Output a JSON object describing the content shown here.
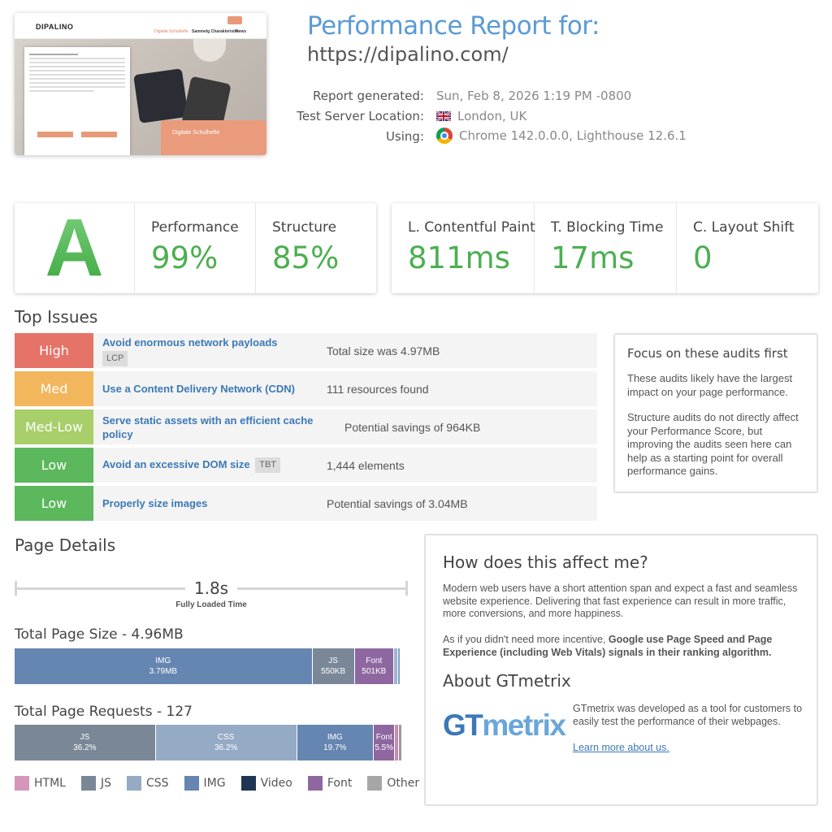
{
  "header": {
    "title": "Performance Report for:",
    "url": "https://dipalino.com/",
    "report_generated_label": "Report generated:",
    "report_generated_value": "Sun, Feb 8, 2026 1:19 PM -0800",
    "server_label": "Test Server Location:",
    "server_value": "London, UK",
    "using_label": "Using:",
    "using_value": "Chrome 142.0.0.0, Lighthouse 12.6.1"
  },
  "thumbnail": {
    "logo": "DIPALINO",
    "nav": [
      "Digitale Schulhefte",
      "Sammelg Charakteristik",
      "News"
    ],
    "card_title": "Digitale Schulhefte"
  },
  "grades": {
    "grade": "A",
    "performance_label": "Performance",
    "performance_value": "99%",
    "structure_label": "Structure",
    "structure_value": "85%"
  },
  "vitals": {
    "lcp_label": "L. Contentful Paint",
    "lcp_value": "811ms",
    "tbt_label": "T. Blocking Time",
    "tbt_value": "17ms",
    "cls_label": "C. Layout Shift",
    "cls_value": "0"
  },
  "top_issues": {
    "title": "Top Issues",
    "items": [
      {
        "severity": "High",
        "color": "#e57368",
        "name": "Avoid enormous network payloads",
        "tag": "LCP",
        "detail": "Total size was 4.97MB"
      },
      {
        "severity": "Med",
        "color": "#f2b65d",
        "name": "Use a Content Delivery Network (CDN)",
        "tag": "",
        "detail": "111 resources found"
      },
      {
        "severity": "Med-Low",
        "color": "#a8cf6a",
        "name": "Serve static assets with an efficient cache policy",
        "tag": "",
        "detail": "Potential savings of 964KB"
      },
      {
        "severity": "Low",
        "color": "#5cb85c",
        "name": "Avoid an excessive DOM size",
        "tag": "TBT",
        "detail": "1,444 elements"
      },
      {
        "severity": "Low",
        "color": "#5cb85c",
        "name": "Properly size images",
        "tag": "",
        "detail": "Potential savings of 3.04MB"
      }
    ]
  },
  "focus": {
    "title": "Focus on these audits first",
    "p1": "These audits likely have the largest impact on your page performance.",
    "p2": "Structure audits do not directly affect your Performance Score, but improving the audits seen here can help as a starting point for overall performance gains."
  },
  "page_details": {
    "title": "Page Details",
    "fully_loaded_value": "1.8s",
    "fully_loaded_label": "Fully Loaded Time",
    "size_title": "Total Page Size - 4.96MB",
    "size_segments": [
      {
        "name": "IMG",
        "value": "3.79MB",
        "fraction": 0.764,
        "color": "#6586b0"
      },
      {
        "name": "JS",
        "value": "550KB",
        "fraction": 0.108,
        "color": "#7a8797"
      },
      {
        "name": "Font",
        "value": "501KB",
        "fraction": 0.101,
        "color": "#8e67a0"
      },
      {
        "name": "",
        "value": "",
        "fraction": 0.01,
        "color": "#a0b4cc"
      },
      {
        "name": "",
        "value": "",
        "fraction": 0.006,
        "color": "#7fa0c8"
      }
    ],
    "requests_title": "Total Page Requests - 127",
    "request_segments": [
      {
        "name": "JS",
        "value": "36.2%",
        "fraction": 0.362,
        "color": "#7a8797"
      },
      {
        "name": "CSS",
        "value": "36.2%",
        "fraction": 0.362,
        "color": "#95aac5"
      },
      {
        "name": "IMG",
        "value": "19.7%",
        "fraction": 0.197,
        "color": "#6586b0"
      },
      {
        "name": "Font",
        "value": "5.5%",
        "fraction": 0.055,
        "color": "#8e67a0"
      },
      {
        "name": "",
        "value": "",
        "fraction": 0.01,
        "color": "#c98bb0"
      },
      {
        "name": "",
        "value": "",
        "fraction": 0.008,
        "color": "#9a9a9a"
      }
    ],
    "legend": [
      {
        "name": "HTML",
        "color": "#d497ba"
      },
      {
        "name": "JS",
        "color": "#7a8797"
      },
      {
        "name": "CSS",
        "color": "#95aac5"
      },
      {
        "name": "IMG",
        "color": "#6586b0"
      },
      {
        "name": "Video",
        "color": "#1f3553"
      },
      {
        "name": "Font",
        "color": "#8e67a0"
      },
      {
        "name": "Other",
        "color": "#a6a6a6"
      }
    ]
  },
  "affect": {
    "title": "How does this affect me?",
    "p1": "Modern web users have a short attention span and expect a fast and seamless website experience. Delivering that fast experience can result in more traffic, more conversions, and more happiness.",
    "p2_prefix": "As if you didn't need more incentive, ",
    "p2_bold": "Google use Page Speed and Page Experience (including Web Vitals) signals in their ranking algorithm.",
    "about_title": "About GTmetrix",
    "logo_gt": "GT",
    "logo_metrix": "metrix",
    "about_text": "GTmetrix was developed as a tool for customers to easily test the performance of their webpages.",
    "learn_more": "Learn more about us."
  }
}
